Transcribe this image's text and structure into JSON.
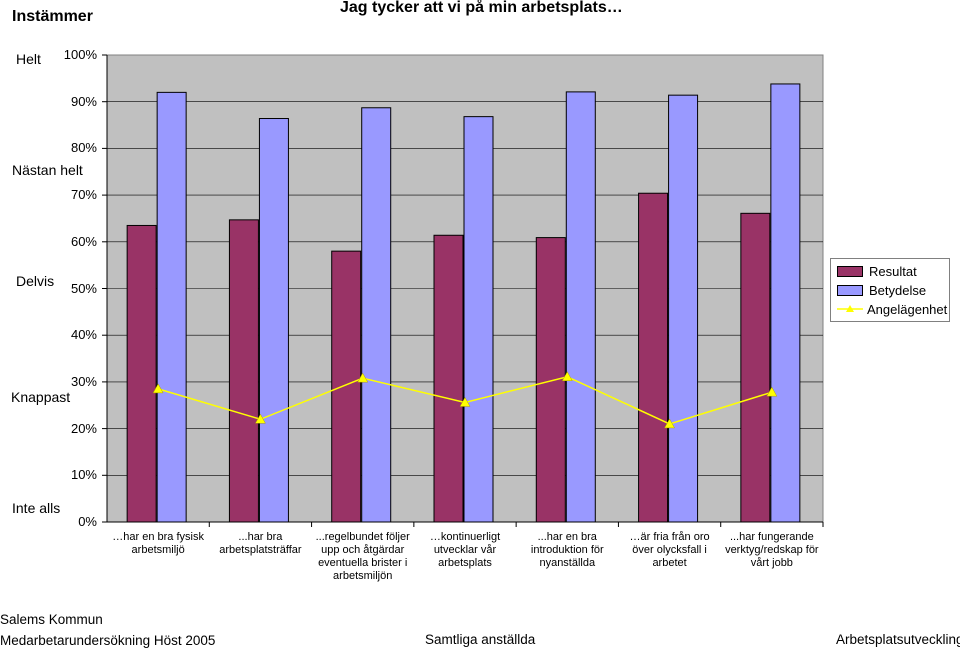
{
  "header": {
    "corner_label": "Instämmer",
    "title": "Jag tycker att vi på min arbetsplats…"
  },
  "scale_labels": [
    "Helt",
    "Nästan helt",
    "Delvis",
    "Knappast",
    "Inte alls"
  ],
  "chart_data": {
    "type": "bar",
    "title": "Jag tycker att vi på min arbetsplats…",
    "categories": [
      "…har en bra fysisk arbetsmiljö",
      "...har bra arbetsplatsträffar",
      "...regelbundet följer upp och åtgärdar eventuella brister i arbetsmiljön",
      "…kontinuerligt utvecklar vår arbetsplats",
      "...har en bra introduktion för nyanställda",
      "…är fria från oro över olycksfall i arbetet",
      "...har fungerande verktyg/redskap för vårt jobb"
    ],
    "series": [
      {
        "name": "Resultat",
        "type": "bar",
        "color": "#993366",
        "values": [
          63.5,
          64.7,
          58.0,
          61.4,
          60.9,
          70.4,
          66.1
        ]
      },
      {
        "name": "Betydelse",
        "type": "bar",
        "color": "#9999ff",
        "values": [
          92.0,
          86.4,
          88.7,
          86.8,
          92.1,
          91.4,
          93.8
        ]
      },
      {
        "name": "Angelägenhet",
        "type": "line",
        "color": "#ffff00",
        "values": [
          28.5,
          22.0,
          30.8,
          25.6,
          31.1,
          21.0,
          27.8
        ]
      }
    ],
    "yticks": [
      "0%",
      "10%",
      "20%",
      "30%",
      "40%",
      "50%",
      "60%",
      "70%",
      "80%",
      "90%",
      "100%"
    ],
    "ylim": [
      0,
      100
    ],
    "grid": true,
    "plot_background": "#c0c0c0",
    "legend_position": "right"
  },
  "footer": {
    "org": "Salems Kommun",
    "survey": "Medarbetarundersökning Höst 2005",
    "group": "Samtliga anställda",
    "area": "Arbetsplatsutveckling"
  }
}
